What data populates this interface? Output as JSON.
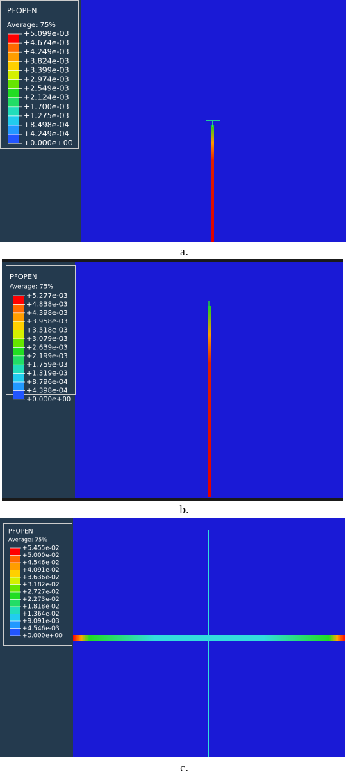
{
  "panels": [
    {
      "legend": {
        "title": "PFOPEN",
        "subtitle": "Average: 75%",
        "labels": [
          "+5.099e-03",
          "+4.674e-03",
          "+4.249e-03",
          "+3.824e-03",
          "+3.399e-03",
          "+2.974e-03",
          "+2.549e-03",
          "+2.124e-03",
          "+1.700e-03",
          "+1.275e-03",
          "+8.498e-04",
          "+4.249e-04",
          "+0.000e+00"
        ]
      },
      "caption": "a."
    },
    {
      "legend": {
        "title": "PFOPEN",
        "subtitle": "Average: 75%",
        "labels": [
          "+5.277e-03",
          "+4.838e-03",
          "+4.398e-03",
          "+3.958e-03",
          "+3.518e-03",
          "+3.079e-03",
          "+2.639e-03",
          "+2.199e-03",
          "+1.759e-03",
          "+1.319e-03",
          "+8.796e-04",
          "+4.398e-04",
          "+0.000e+00"
        ]
      },
      "caption": "b."
    },
    {
      "legend": {
        "title": "PFOPEN",
        "subtitle": "Average: 75%",
        "labels": [
          "+5.455e-02",
          "+5.000e-02",
          "+4.546e-02",
          "+4.091e-02",
          "+3.636e-02",
          "+3.182e-02",
          "+2.727e-02",
          "+2.273e-02",
          "+1.818e-02",
          "+1.364e-02",
          "+9.091e-03",
          "+4.546e-03",
          "+0.000e+00"
        ]
      },
      "caption": "c."
    }
  ]
}
